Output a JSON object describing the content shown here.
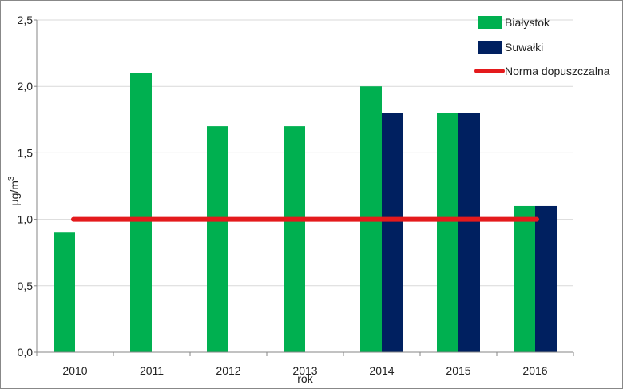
{
  "chart_data": {
    "type": "bar",
    "title": "",
    "xlabel": "rok",
    "ylabel": "μg/m",
    "ylabel_sup": "3",
    "categories": [
      "2010",
      "2011",
      "2012",
      "2013",
      "2014",
      "2015",
      "2016"
    ],
    "series": [
      {
        "name": "Białystok",
        "color": "#00B050",
        "values": [
          0.9,
          2.1,
          1.7,
          1.7,
          2.0,
          1.8,
          1.1
        ]
      },
      {
        "name": "Suwałki",
        "color": "#002060",
        "values": [
          null,
          null,
          null,
          null,
          1.8,
          1.8,
          1.1
        ]
      }
    ],
    "reference_line": {
      "name": "Norma dopuszczalna",
      "value": 1.0,
      "color": "#E41A1C"
    },
    "ylim": [
      0,
      2.5
    ],
    "yticks": [
      "0,0",
      "0,5",
      "1,0",
      "1,5",
      "2,0",
      "2,5"
    ],
    "ytick_values": [
      0,
      0.5,
      1.0,
      1.5,
      2.0,
      2.5
    ],
    "grid": "horizontal",
    "legend": "top-right"
  }
}
